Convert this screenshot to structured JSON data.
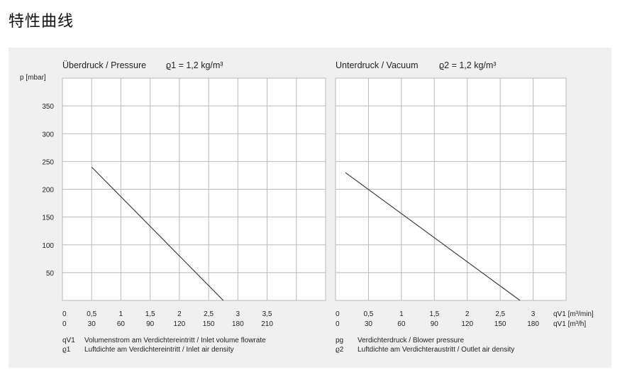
{
  "page_title": "特性曲线",
  "colors": {
    "panel_bg": "#f0f0f0",
    "grid": "#b9b9b9",
    "curve": "#333333"
  },
  "chart_data": [
    {
      "type": "line",
      "title": "Überdruck / Pressure",
      "density_label": "ϱ1 = 1,2 kg/m³",
      "ylabel": "p [mbar]",
      "ylim": [
        0,
        400
      ],
      "y_ticks": [
        50,
        100,
        150,
        200,
        250,
        300,
        350
      ],
      "xlim": [
        0,
        4.5
      ],
      "x_ticks_min": [
        "0",
        "0,5",
        "1",
        "1,5",
        "2",
        "2,5",
        "3",
        "3,5"
      ],
      "x_ticks_h": [
        "0",
        "30",
        "60",
        "90",
        "120",
        "150",
        "180",
        "210"
      ],
      "grid": true,
      "series": [
        {
          "x": [
            0.5,
            2.75
          ],
          "y": [
            240,
            0
          ]
        }
      ],
      "legend": [
        {
          "symbol": "qV1",
          "text": "Volumenstrom am Verdichtereintritt / Inlet volume flowrate"
        },
        {
          "symbol": "ϱ1",
          "text": "Luftdichte am Verdichtereintritt / Inlet air density"
        }
      ]
    },
    {
      "type": "line",
      "title": "Unterdruck / Vacuum",
      "density_label": "ϱ2 = 1,2 kg/m³",
      "ylim": [
        0,
        400
      ],
      "xlim": [
        0,
        3.5
      ],
      "x_ticks_min": [
        "0",
        "0,5",
        "1",
        "1,5",
        "2",
        "2,5",
        "3"
      ],
      "x_ticks_h": [
        "0",
        "30",
        "60",
        "90",
        "120",
        "150",
        "180"
      ],
      "x_unit_min": "qV1 [m³/min]",
      "x_unit_h": "qV1 [m³/h]",
      "grid": true,
      "series": [
        {
          "x": [
            0.15,
            2.8
          ],
          "y": [
            230,
            0
          ]
        }
      ],
      "legend": [
        {
          "symbol": "pg",
          "text": "Verdichterdruck / Blower pressure"
        },
        {
          "symbol": "ϱ2",
          "text": "Luftdichte am Verdichteraustritt / Outlet air density"
        }
      ]
    }
  ]
}
